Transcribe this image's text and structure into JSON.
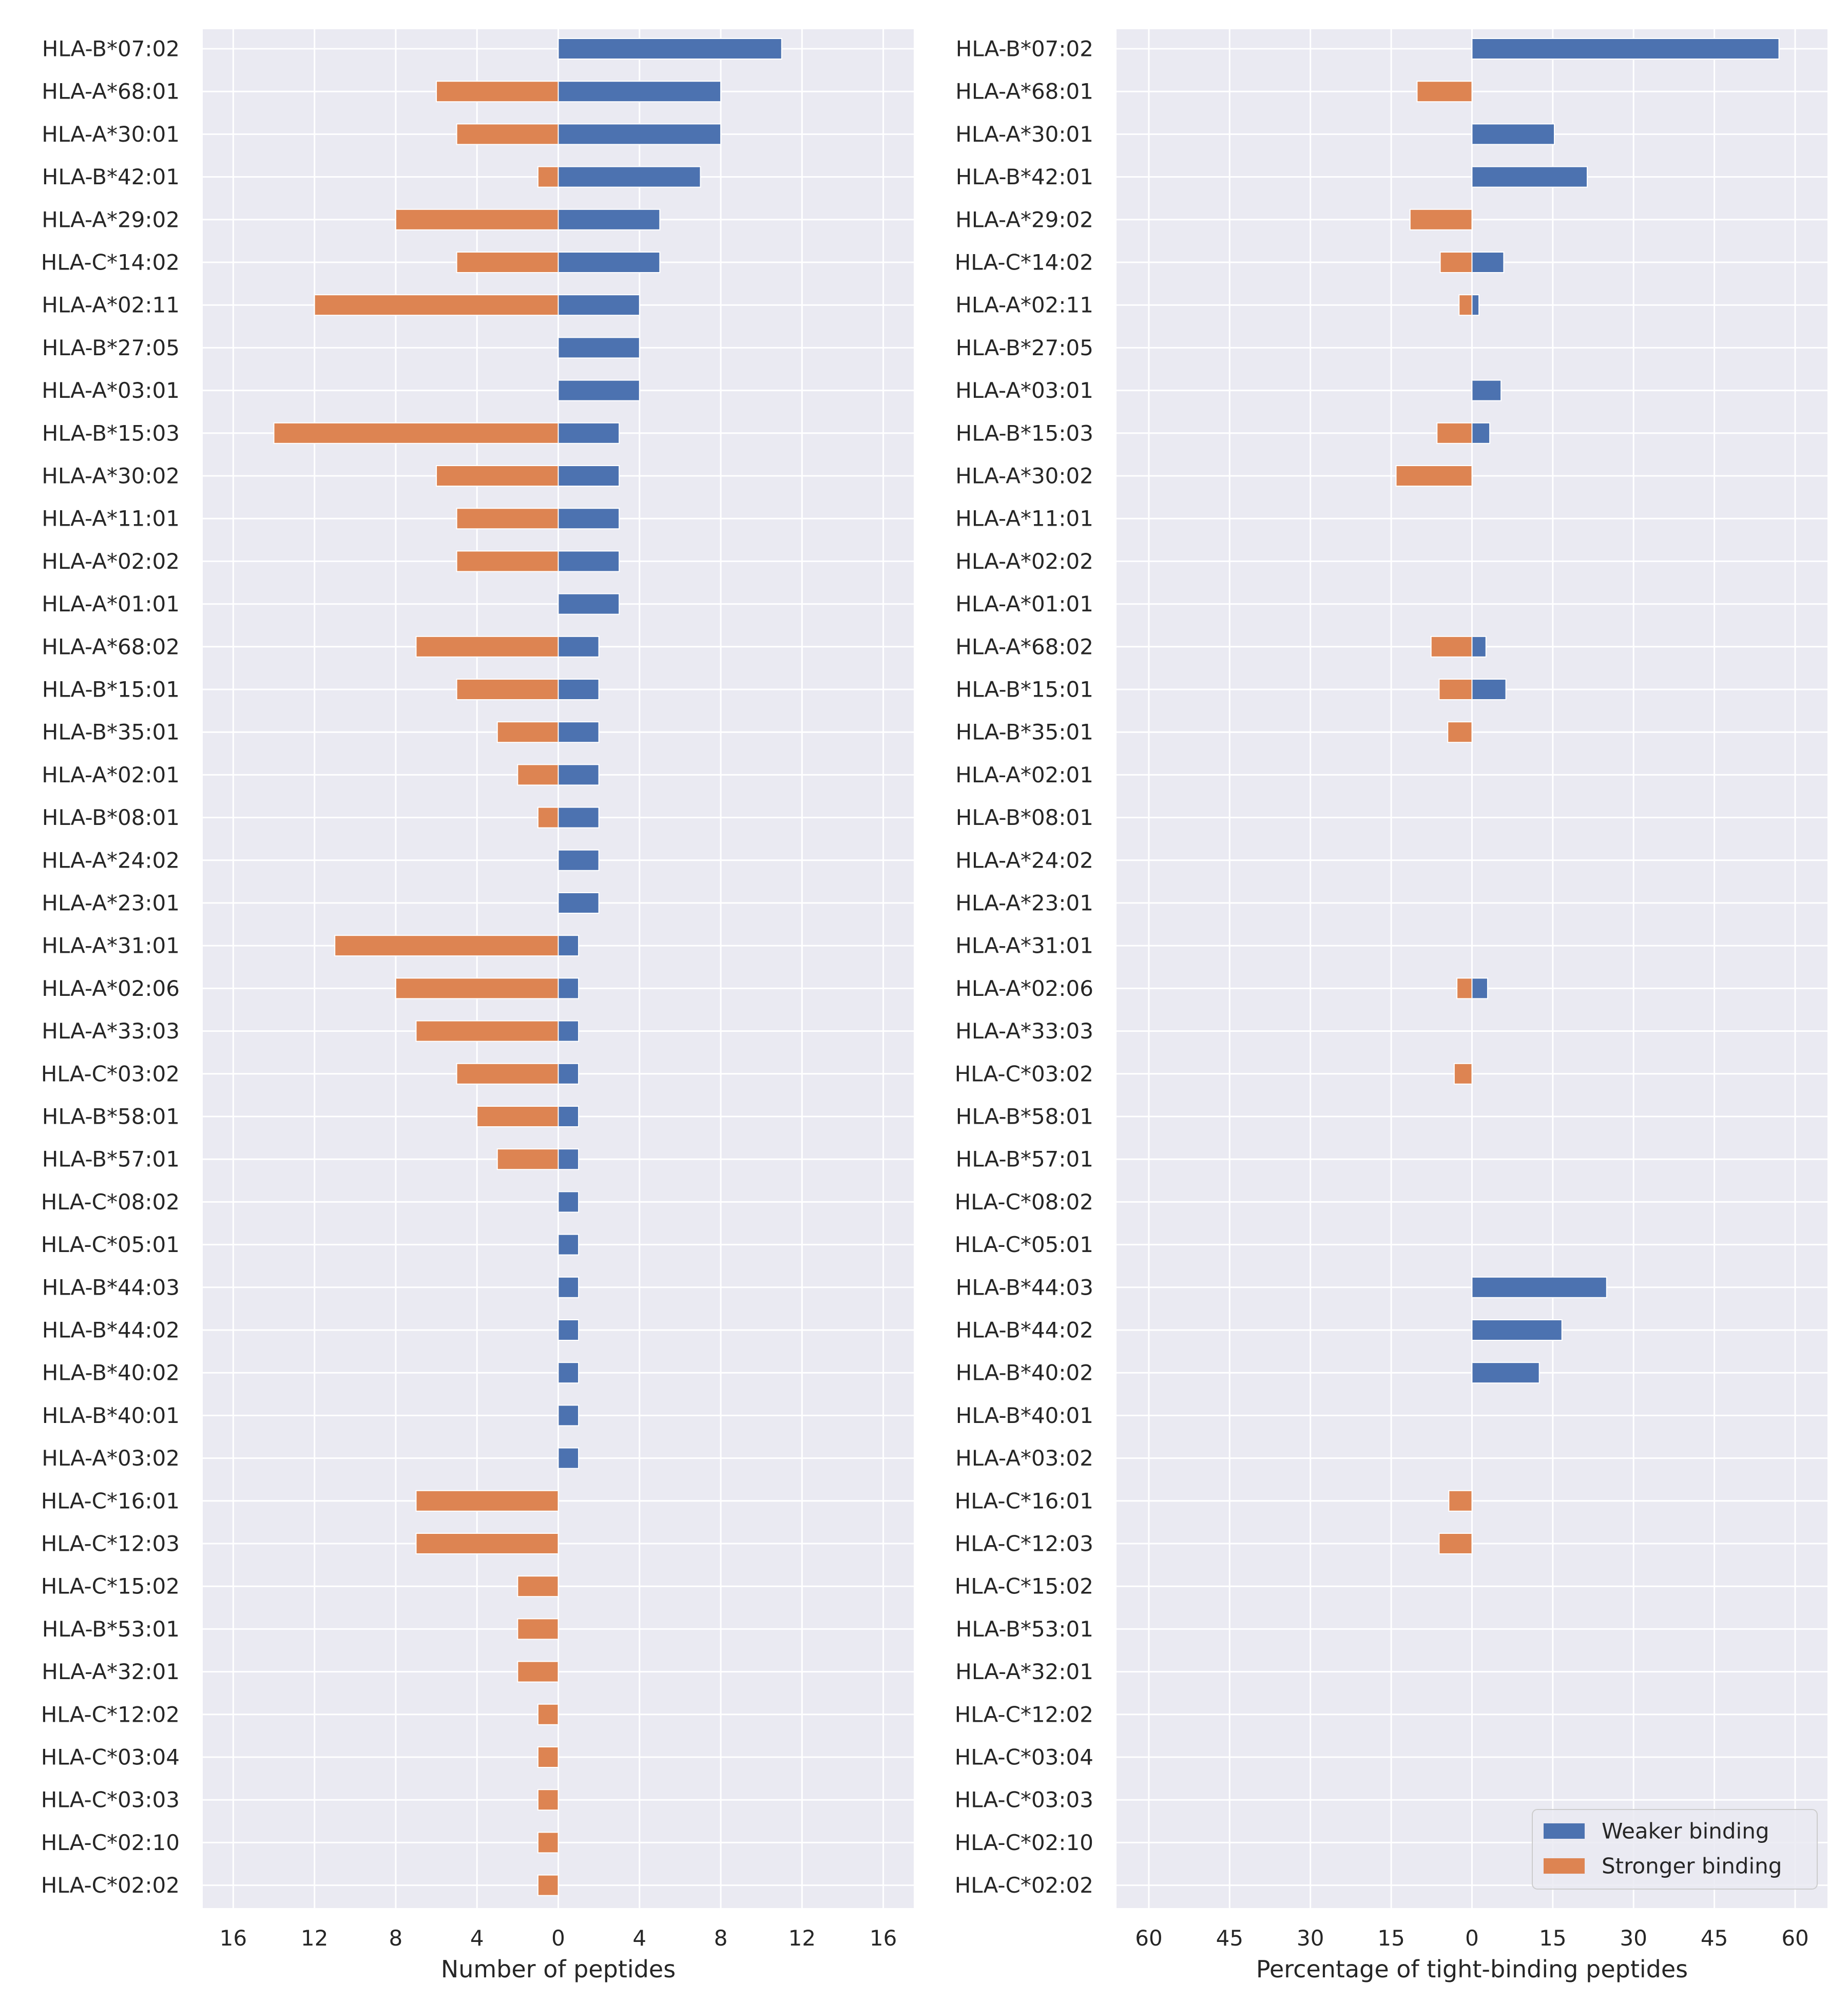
{
  "colors": {
    "weaker": "#4c72b0",
    "stronger": "#dd8452",
    "plot_background": "#eaeaf2",
    "grid": "#ffffff",
    "text": "#262626"
  },
  "chart_data": [
    {
      "type": "bar",
      "orientation": "horizontal",
      "layout": "diverging",
      "xlabel": "Number of peptides",
      "xlim": [
        -17.5,
        17.5
      ],
      "xticks": [
        -16,
        -12,
        -8,
        -4,
        0,
        4,
        8,
        12,
        16
      ],
      "xtick_labels": [
        "16",
        "12",
        "8",
        "4",
        "0",
        "4",
        "8",
        "12",
        "16"
      ],
      "grid": true,
      "categories": [
        "HLA-B*07:02",
        "HLA-A*68:01",
        "HLA-A*30:01",
        "HLA-B*42:01",
        "HLA-A*29:02",
        "HLA-C*14:02",
        "HLA-A*02:11",
        "HLA-B*27:05",
        "HLA-A*03:01",
        "HLA-B*15:03",
        "HLA-A*30:02",
        "HLA-A*11:01",
        "HLA-A*02:02",
        "HLA-A*01:01",
        "HLA-A*68:02",
        "HLA-B*15:01",
        "HLA-B*35:01",
        "HLA-A*02:01",
        "HLA-B*08:01",
        "HLA-A*24:02",
        "HLA-A*23:01",
        "HLA-A*31:01",
        "HLA-A*02:06",
        "HLA-A*33:03",
        "HLA-C*03:02",
        "HLA-B*58:01",
        "HLA-B*57:01",
        "HLA-C*08:02",
        "HLA-C*05:01",
        "HLA-B*44:03",
        "HLA-B*44:02",
        "HLA-B*40:02",
        "HLA-B*40:01",
        "HLA-A*03:02",
        "HLA-C*16:01",
        "HLA-C*12:03",
        "HLA-C*15:02",
        "HLA-B*53:01",
        "HLA-A*32:01",
        "HLA-C*12:02",
        "HLA-C*03:04",
        "HLA-C*03:03",
        "HLA-C*02:10",
        "HLA-C*02:02"
      ],
      "series": [
        {
          "name": "Weaker binding",
          "color_key": "weaker",
          "direction": "right",
          "values": [
            11,
            8,
            8,
            7,
            5,
            5,
            4,
            4,
            4,
            3,
            3,
            3,
            3,
            3,
            2,
            2,
            2,
            2,
            2,
            2,
            2,
            1,
            1,
            1,
            1,
            1,
            1,
            1,
            1,
            1,
            1,
            1,
            1,
            1,
            0,
            0,
            0,
            0,
            0,
            0,
            0,
            0,
            0,
            0
          ]
        },
        {
          "name": "Stronger binding",
          "color_key": "stronger",
          "direction": "left",
          "values": [
            0,
            6,
            5,
            1,
            8,
            5,
            12,
            0,
            0,
            14,
            6,
            5,
            5,
            0,
            7,
            5,
            3,
            2,
            1,
            0,
            0,
            11,
            8,
            7,
            5,
            4,
            3,
            0,
            0,
            0,
            0,
            0,
            0,
            0,
            7,
            7,
            2,
            2,
            2,
            1,
            1,
            1,
            1,
            1
          ]
        }
      ]
    },
    {
      "type": "bar",
      "orientation": "horizontal",
      "layout": "diverging",
      "xlabel": "Percentage of tight-binding peptides",
      "xlim": [
        -66,
        66
      ],
      "xticks": [
        -60,
        -45,
        -30,
        -15,
        0,
        15,
        30,
        45,
        60
      ],
      "xtick_labels": [
        "60",
        "45",
        "30",
        "15",
        "0",
        "15",
        "30",
        "45",
        "60"
      ],
      "grid": true,
      "legend": {
        "position": "bottom-right",
        "entries": [
          "Weaker binding",
          "Stronger binding"
        ]
      },
      "categories": [
        "HLA-B*07:02",
        "HLA-A*68:01",
        "HLA-A*30:01",
        "HLA-B*42:01",
        "HLA-A*29:02",
        "HLA-C*14:02",
        "HLA-A*02:11",
        "HLA-B*27:05",
        "HLA-A*03:01",
        "HLA-B*15:03",
        "HLA-A*30:02",
        "HLA-A*11:01",
        "HLA-A*02:02",
        "HLA-A*01:01",
        "HLA-A*68:02",
        "HLA-B*15:01",
        "HLA-B*35:01",
        "HLA-A*02:01",
        "HLA-B*08:01",
        "HLA-A*24:02",
        "HLA-A*23:01",
        "HLA-A*31:01",
        "HLA-A*02:06",
        "HLA-A*33:03",
        "HLA-C*03:02",
        "HLA-B*58:01",
        "HLA-B*57:01",
        "HLA-C*08:02",
        "HLA-C*05:01",
        "HLA-B*44:03",
        "HLA-B*44:02",
        "HLA-B*40:02",
        "HLA-B*40:01",
        "HLA-A*03:02",
        "HLA-C*16:01",
        "HLA-C*12:03",
        "HLA-C*15:02",
        "HLA-B*53:01",
        "HLA-A*32:01",
        "HLA-C*12:02",
        "HLA-C*03:04",
        "HLA-C*03:03",
        "HLA-C*02:10",
        "HLA-C*02:02"
      ],
      "series": [
        {
          "name": "Weaker binding",
          "color_key": "weaker",
          "direction": "right",
          "values": [
            57,
            0,
            15.3,
            21.4,
            0,
            5.9,
            1.3,
            0,
            5.4,
            3.3,
            0,
            0,
            0,
            0,
            2.6,
            6.3,
            0,
            0,
            0,
            0,
            0,
            0,
            2.9,
            0,
            0,
            0,
            0,
            0,
            0,
            25,
            16.7,
            12.5,
            0,
            0,
            0,
            0,
            0,
            0,
            0,
            0,
            0,
            0,
            0,
            0
          ]
        },
        {
          "name": "Stronger binding",
          "color_key": "stronger",
          "direction": "left",
          "values": [
            0,
            10.2,
            0,
            0,
            11.5,
            5.9,
            2.4,
            0,
            0,
            6.5,
            14.1,
            0,
            0,
            0,
            7.6,
            6.1,
            4.5,
            0,
            0,
            0,
            0,
            0,
            2.8,
            0,
            3.3,
            0,
            0,
            0,
            0,
            0,
            0,
            0,
            0,
            0,
            4.3,
            6.1,
            0,
            0,
            0,
            0,
            0,
            0,
            0,
            0
          ]
        }
      ]
    }
  ]
}
